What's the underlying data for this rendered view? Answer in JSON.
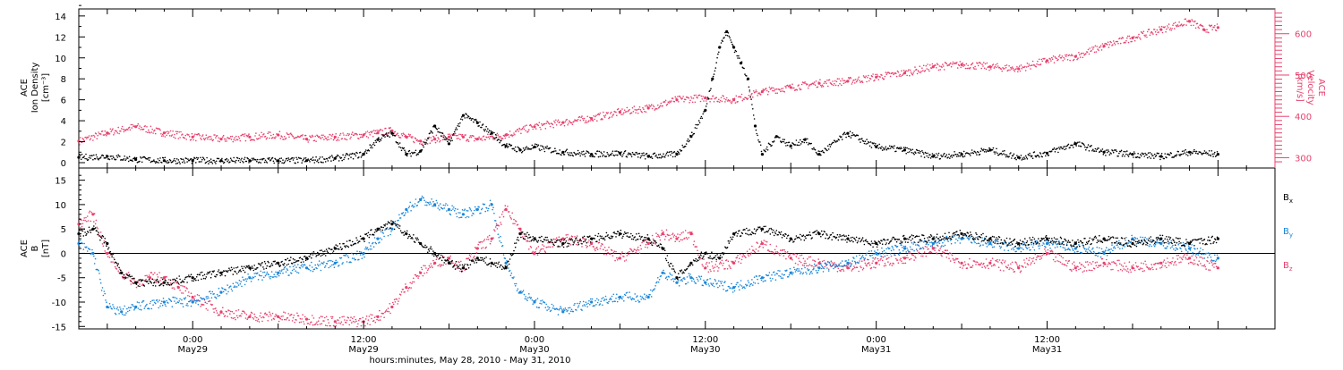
{
  "colors": {
    "black": "#000000",
    "red": "#e8416d",
    "blue": "#1a86d8"
  },
  "chart_data": [
    {
      "type": "scatter",
      "panel": "top",
      "ylabel_left": [
        "ACE",
        "Ion Density",
        "[cm⁻³]"
      ],
      "ylabel_right": [
        "ACE",
        "Velocity",
        "[km/s]"
      ],
      "xlim_hours": [
        -8,
        76
      ],
      "ylim_left": [
        0,
        14.5
      ],
      "ylim_right": [
        275,
        660
      ],
      "left_ticks": [
        "0",
        "2",
        "4",
        "6",
        "8",
        "10",
        "12",
        "14"
      ],
      "right_ticks": [
        "300",
        "400",
        "500",
        "600"
      ],
      "series": [
        {
          "name": "",
          "axis": "left",
          "color": "#000000",
          "x": [
            -8,
            -6,
            -4,
            -2,
            0,
            2,
            4,
            6,
            8,
            10,
            12,
            13,
            14,
            15,
            16,
            17,
            18,
            19,
            20,
            21,
            22,
            23,
            24,
            26,
            28,
            30,
            32,
            34,
            35,
            36,
            36.5,
            37,
            37.5,
            38,
            38.5,
            39,
            39.5,
            40,
            41,
            42,
            43,
            44,
            46,
            48,
            50,
            52,
            54,
            56,
            58,
            60,
            62,
            64,
            66,
            68,
            70,
            72
          ],
          "values": [
            0.5,
            0.6,
            0.3,
            0.2,
            0.2,
            0.2,
            0.2,
            0.2,
            0.2,
            0.4,
            0.8,
            2.2,
            2.8,
            0.8,
            1.1,
            3.5,
            1.8,
            4.5,
            3.8,
            2.8,
            1.6,
            1.2,
            1.5,
            1.0,
            0.8,
            0.9,
            0.6,
            0.8,
            2.5,
            5.0,
            8.0,
            11.0,
            12.5,
            11.0,
            9.5,
            8.0,
            3.5,
            0.8,
            2.5,
            1.6,
            2.2,
            0.8,
            2.8,
            1.5,
            1.2,
            0.6,
            0.8,
            1.2,
            0.5,
            0.9,
            1.8,
            1.0,
            0.8,
            0.6,
            1.0,
            0.8
          ]
        },
        {
          "name": "",
          "axis": "right",
          "color": "#e8416d",
          "x": [
            -8,
            -6,
            -4,
            -2,
            0,
            2,
            4,
            6,
            8,
            10,
            12,
            13,
            14,
            15,
            16,
            17,
            18,
            19,
            20,
            22,
            24,
            26,
            28,
            30,
            32,
            34,
            36,
            38,
            40,
            42,
            44,
            46,
            48,
            50,
            52,
            54,
            56,
            58,
            60,
            62,
            64,
            66,
            68,
            70,
            71,
            72
          ],
          "values": [
            340,
            360,
            375,
            360,
            350,
            345,
            350,
            355,
            345,
            350,
            355,
            360,
            365,
            350,
            340,
            345,
            350,
            350,
            345,
            355,
            375,
            385,
            395,
            410,
            420,
            440,
            445,
            440,
            460,
            470,
            480,
            485,
            495,
            505,
            520,
            525,
            520,
            515,
            535,
            545,
            570,
            590,
            610,
            630,
            610,
            615
          ]
        }
      ]
    },
    {
      "type": "scatter",
      "panel": "bottom",
      "ylabel_left": [
        "ACE",
        "B",
        "[nT]"
      ],
      "xlim_hours": [
        -8,
        76
      ],
      "ylim": [
        -15.5,
        17.5
      ],
      "left_ticks": [
        "-15",
        "-10",
        "-5",
        "0",
        "5",
        "10",
        "15"
      ],
      "xlabel": "hours:minutes, May 28, 2010 - May 31, 2010",
      "x_ticks": [
        {
          "hours": 0,
          "label": "0:00",
          "sublabel": "May29"
        },
        {
          "hours": 12,
          "label": "12:00",
          "sublabel": "May29"
        },
        {
          "hours": 24,
          "label": "0:00",
          "sublabel": "May30"
        },
        {
          "hours": 36,
          "label": "12:00",
          "sublabel": "May30"
        },
        {
          "hours": 48,
          "label": "0:00",
          "sublabel": "May31"
        },
        {
          "hours": 60,
          "label": "12:00",
          "sublabel": "May31"
        }
      ],
      "series": [
        {
          "name": "Bx",
          "color": "#000000",
          "x": [
            -8,
            -7,
            -6,
            -5,
            -4,
            -2,
            0,
            2,
            4,
            6,
            8,
            10,
            12,
            13,
            14,
            15,
            16,
            17,
            18,
            19,
            20,
            21,
            22,
            23,
            24,
            26,
            28,
            30,
            32,
            33,
            34,
            35,
            36,
            37,
            38,
            40,
            42,
            44,
            46,
            48,
            50,
            52,
            54,
            56,
            58,
            60,
            62,
            64,
            66,
            68,
            70,
            72
          ],
          "values": [
            4,
            5,
            2,
            -4,
            -6,
            -6,
            -5,
            -4,
            -3,
            -2,
            -1,
            1,
            3,
            5,
            6,
            4,
            2,
            0,
            -2,
            -3,
            -1,
            -2,
            -3,
            4,
            3,
            2,
            3,
            4,
            3,
            1,
            -5,
            -2,
            0,
            -1,
            4,
            5,
            3,
            4,
            3,
            2,
            3,
            3,
            4,
            3,
            2,
            3,
            2,
            3,
            2,
            3,
            2,
            3
          ]
        },
        {
          "name": "By",
          "color": "#1a86d8",
          "x": [
            -8,
            -7,
            -6,
            -5,
            -4,
            -2,
            0,
            2,
            4,
            6,
            8,
            10,
            12,
            13,
            14,
            15,
            16,
            17,
            18,
            19,
            20,
            21,
            22,
            23,
            24,
            26,
            28,
            30,
            32,
            33,
            34,
            35,
            36,
            38,
            40,
            42,
            44,
            46,
            48,
            50,
            52,
            54,
            56,
            58,
            60,
            62,
            64,
            66,
            68,
            70,
            72
          ],
          "values": [
            2,
            0,
            -11,
            -12,
            -11,
            -10,
            -10,
            -8,
            -5,
            -4,
            -3,
            -2,
            0,
            3,
            5,
            9,
            11,
            10,
            9,
            8,
            9,
            10,
            -2,
            -8,
            -10,
            -12,
            -10,
            -9,
            -9,
            -4,
            -6,
            -5,
            -6,
            -7,
            -5,
            -4,
            -3,
            -2,
            0,
            1,
            2,
            3,
            2,
            1,
            2,
            1,
            0,
            3,
            2,
            1,
            -1
          ]
        },
        {
          "name": "Bz",
          "color": "#e8416d",
          "x": [
            -8,
            -7,
            -6,
            -5,
            -4,
            -3,
            -2,
            -1,
            0,
            2,
            4,
            6,
            8,
            10,
            12,
            13,
            14,
            15,
            16,
            17,
            18,
            19,
            20,
            21,
            22,
            23,
            24,
            26,
            28,
            30,
            32,
            33,
            34,
            35,
            36,
            38,
            40,
            42,
            44,
            46,
            48,
            50,
            52,
            54,
            56,
            58,
            60,
            62,
            64,
            66,
            68,
            70,
            72
          ],
          "values": [
            6,
            8,
            0,
            -4,
            -6,
            -5,
            -5,
            -7,
            -9,
            -12,
            -13,
            -13,
            -13.5,
            -14,
            -14,
            -13,
            -11,
            -7,
            -4,
            -2,
            -1,
            -3,
            1,
            3,
            9,
            5,
            0,
            3,
            2,
            -1,
            2,
            4,
            3,
            4,
            -3,
            -2,
            2,
            -1,
            -2,
            -3,
            -2,
            -1,
            1,
            -2,
            -2,
            -3,
            0,
            -3,
            -2,
            -3,
            -2,
            -1,
            -3
          ]
        }
      ],
      "legend": [
        {
          "label": "B",
          "sub": "x",
          "color": "#000000"
        },
        {
          "label": "B",
          "sub": "y",
          "color": "#1a86d8"
        },
        {
          "label": "B",
          "sub": "z",
          "color": "#e8416d"
        }
      ]
    }
  ]
}
